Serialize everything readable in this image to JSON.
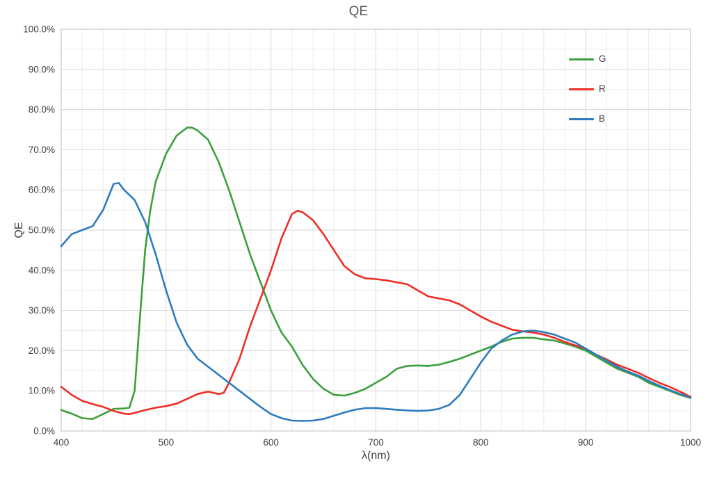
{
  "chart_data": {
    "type": "line",
    "title": "QE",
    "xlabel": "λ(nm)",
    "ylabel": "QE",
    "xlim": [
      400,
      1000
    ],
    "ylim": [
      0,
      1.0
    ],
    "grid": {
      "major": true,
      "minor": true
    },
    "x_ticks": [
      400,
      500,
      600,
      700,
      800,
      900,
      1000
    ],
    "x_tick_labels": [
      "400",
      "500",
      "600",
      "700",
      "800",
      "900",
      "1000"
    ],
    "y_tick_labels": [
      "0.0%",
      "10.0%",
      "20.0%",
      "30.0%",
      "40.0%",
      "50.0%",
      "60.0%",
      "70.0%",
      "80.0%",
      "90.0%",
      "100.0%"
    ],
    "legend": {
      "position": "top-right",
      "entries": [
        {
          "label": "G",
          "color": "#3ba03c"
        },
        {
          "label": "R",
          "color": "#ee2e24"
        },
        {
          "label": "B",
          "color": "#2e7bbf"
        }
      ]
    },
    "series": [
      {
        "name": "G",
        "color": "#3ba03c",
        "points": [
          [
            400,
            0.052
          ],
          [
            410,
            0.043
          ],
          [
            420,
            0.032
          ],
          [
            430,
            0.03
          ],
          [
            440,
            0.042
          ],
          [
            450,
            0.055
          ],
          [
            460,
            0.056
          ],
          [
            465,
            0.058
          ],
          [
            470,
            0.1
          ],
          [
            475,
            0.28
          ],
          [
            480,
            0.45
          ],
          [
            485,
            0.55
          ],
          [
            490,
            0.62
          ],
          [
            500,
            0.69
          ],
          [
            510,
            0.735
          ],
          [
            520,
            0.755
          ],
          [
            525,
            0.755
          ],
          [
            530,
            0.748
          ],
          [
            540,
            0.725
          ],
          [
            550,
            0.67
          ],
          [
            560,
            0.6
          ],
          [
            570,
            0.52
          ],
          [
            580,
            0.44
          ],
          [
            590,
            0.37
          ],
          [
            600,
            0.3
          ],
          [
            610,
            0.245
          ],
          [
            620,
            0.21
          ],
          [
            630,
            0.165
          ],
          [
            640,
            0.13
          ],
          [
            650,
            0.105
          ],
          [
            660,
            0.09
          ],
          [
            670,
            0.088
          ],
          [
            680,
            0.095
          ],
          [
            690,
            0.105
          ],
          [
            700,
            0.12
          ],
          [
            710,
            0.135
          ],
          [
            720,
            0.155
          ],
          [
            730,
            0.162
          ],
          [
            740,
            0.163
          ],
          [
            750,
            0.162
          ],
          [
            760,
            0.165
          ],
          [
            770,
            0.172
          ],
          [
            780,
            0.18
          ],
          [
            790,
            0.19
          ],
          [
            800,
            0.2
          ],
          [
            810,
            0.21
          ],
          [
            820,
            0.222
          ],
          [
            830,
            0.23
          ],
          [
            840,
            0.232
          ],
          [
            850,
            0.232
          ],
          [
            860,
            0.228
          ],
          [
            870,
            0.225
          ],
          [
            880,
            0.218
          ],
          [
            890,
            0.21
          ],
          [
            900,
            0.2
          ],
          [
            910,
            0.185
          ],
          [
            920,
            0.17
          ],
          [
            930,
            0.155
          ],
          [
            940,
            0.145
          ],
          [
            950,
            0.135
          ],
          [
            960,
            0.12
          ],
          [
            970,
            0.11
          ],
          [
            980,
            0.1
          ],
          [
            990,
            0.09
          ],
          [
            1000,
            0.082
          ]
        ]
      },
      {
        "name": "R",
        "color": "#ee2e24",
        "points": [
          [
            400,
            0.11
          ],
          [
            410,
            0.09
          ],
          [
            420,
            0.075
          ],
          [
            430,
            0.067
          ],
          [
            440,
            0.06
          ],
          [
            450,
            0.05
          ],
          [
            460,
            0.043
          ],
          [
            465,
            0.042
          ],
          [
            470,
            0.045
          ],
          [
            480,
            0.052
          ],
          [
            490,
            0.058
          ],
          [
            500,
            0.062
          ],
          [
            510,
            0.068
          ],
          [
            520,
            0.08
          ],
          [
            530,
            0.092
          ],
          [
            540,
            0.098
          ],
          [
            550,
            0.092
          ],
          [
            555,
            0.095
          ],
          [
            560,
            0.12
          ],
          [
            570,
            0.18
          ],
          [
            580,
            0.26
          ],
          [
            590,
            0.33
          ],
          [
            600,
            0.4
          ],
          [
            610,
            0.48
          ],
          [
            620,
            0.54
          ],
          [
            625,
            0.548
          ],
          [
            630,
            0.545
          ],
          [
            640,
            0.525
          ],
          [
            650,
            0.49
          ],
          [
            660,
            0.45
          ],
          [
            670,
            0.41
          ],
          [
            680,
            0.39
          ],
          [
            690,
            0.38
          ],
          [
            700,
            0.378
          ],
          [
            710,
            0.375
          ],
          [
            720,
            0.37
          ],
          [
            730,
            0.365
          ],
          [
            740,
            0.35
          ],
          [
            750,
            0.335
          ],
          [
            760,
            0.33
          ],
          [
            770,
            0.325
          ],
          [
            780,
            0.315
          ],
          [
            790,
            0.3
          ],
          [
            800,
            0.285
          ],
          [
            810,
            0.272
          ],
          [
            820,
            0.262
          ],
          [
            830,
            0.252
          ],
          [
            840,
            0.248
          ],
          [
            850,
            0.245
          ],
          [
            860,
            0.24
          ],
          [
            870,
            0.232
          ],
          [
            880,
            0.222
          ],
          [
            890,
            0.213
          ],
          [
            900,
            0.205
          ],
          [
            910,
            0.19
          ],
          [
            920,
            0.178
          ],
          [
            930,
            0.165
          ],
          [
            940,
            0.155
          ],
          [
            950,
            0.145
          ],
          [
            960,
            0.132
          ],
          [
            970,
            0.12
          ],
          [
            980,
            0.11
          ],
          [
            990,
            0.098
          ],
          [
            1000,
            0.085
          ]
        ]
      },
      {
        "name": "B",
        "color": "#2e7bbf",
        "points": [
          [
            400,
            0.46
          ],
          [
            410,
            0.49
          ],
          [
            420,
            0.5
          ],
          [
            430,
            0.51
          ],
          [
            440,
            0.55
          ],
          [
            450,
            0.615
          ],
          [
            455,
            0.617
          ],
          [
            460,
            0.6
          ],
          [
            470,
            0.575
          ],
          [
            480,
            0.52
          ],
          [
            490,
            0.44
          ],
          [
            500,
            0.35
          ],
          [
            510,
            0.27
          ],
          [
            520,
            0.215
          ],
          [
            530,
            0.18
          ],
          [
            540,
            0.16
          ],
          [
            550,
            0.14
          ],
          [
            560,
            0.12
          ],
          [
            570,
            0.1
          ],
          [
            580,
            0.08
          ],
          [
            590,
            0.06
          ],
          [
            600,
            0.042
          ],
          [
            610,
            0.032
          ],
          [
            620,
            0.026
          ],
          [
            630,
            0.025
          ],
          [
            640,
            0.026
          ],
          [
            650,
            0.03
          ],
          [
            660,
            0.038
          ],
          [
            670,
            0.046
          ],
          [
            680,
            0.053
          ],
          [
            690,
            0.057
          ],
          [
            700,
            0.057
          ],
          [
            710,
            0.055
          ],
          [
            720,
            0.053
          ],
          [
            730,
            0.051
          ],
          [
            740,
            0.05
          ],
          [
            750,
            0.051
          ],
          [
            760,
            0.055
          ],
          [
            770,
            0.065
          ],
          [
            780,
            0.09
          ],
          [
            790,
            0.13
          ],
          [
            800,
            0.17
          ],
          [
            810,
            0.205
          ],
          [
            820,
            0.225
          ],
          [
            830,
            0.24
          ],
          [
            840,
            0.248
          ],
          [
            850,
            0.25
          ],
          [
            860,
            0.246
          ],
          [
            870,
            0.24
          ],
          [
            880,
            0.23
          ],
          [
            890,
            0.22
          ],
          [
            900,
            0.205
          ],
          [
            910,
            0.19
          ],
          [
            920,
            0.175
          ],
          [
            930,
            0.16
          ],
          [
            940,
            0.148
          ],
          [
            950,
            0.138
          ],
          [
            960,
            0.125
          ],
          [
            970,
            0.113
          ],
          [
            980,
            0.102
          ],
          [
            990,
            0.092
          ],
          [
            1000,
            0.083
          ]
        ]
      }
    ]
  }
}
